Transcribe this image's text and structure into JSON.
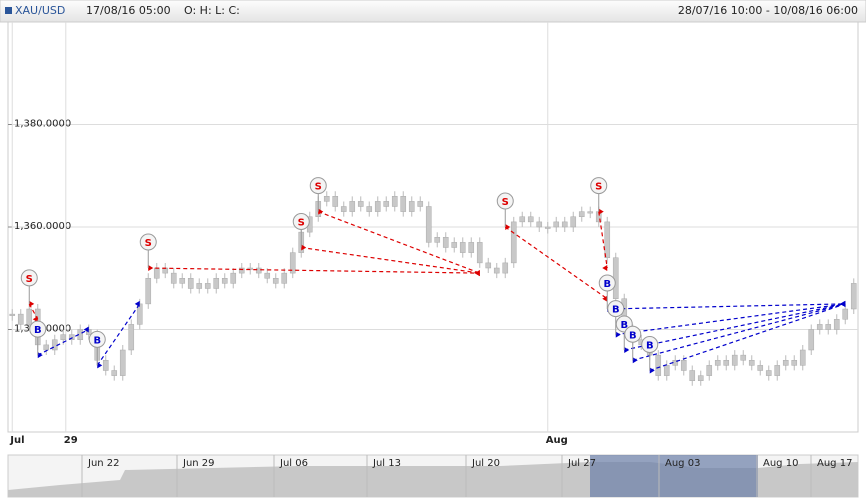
{
  "header": {
    "symbol": "XAU/USD",
    "time": "17/08/16 05:00",
    "ohlc": "O: H: L: C:",
    "range": "28/07/16 10:00 - 10/08/16 06:00"
  },
  "chart_data": {
    "type": "candlestick",
    "color": "#c8c8c8",
    "ylim": [
      1320,
      1400
    ],
    "yticks": [
      {
        "value": 1340,
        "label": "1,340.0000"
      },
      {
        "value": 1360,
        "label": "1,360.0000"
      },
      {
        "value": 1380,
        "label": "1,380.0000"
      }
    ],
    "xlim": [
      -0.5,
      99.5
    ],
    "xticks": [
      {
        "value": 0,
        "label": "Jul"
      },
      {
        "value": 6.3,
        "label": "29"
      },
      {
        "value": 63,
        "label": "Aug"
      }
    ],
    "grid": true,
    "values": [
      1343,
      1341,
      1344,
      1337,
      1336,
      1338,
      1339,
      1338,
      1340,
      1339,
      1334,
      1332,
      1331,
      1336,
      1341,
      1345,
      1350,
      1352,
      1351,
      1349,
      1350,
      1348,
      1349,
      1348,
      1350,
      1349,
      1351,
      1352,
      1352,
      1351,
      1350,
      1349,
      1351,
      1355,
      1359,
      1362,
      1365,
      1366,
      1364,
      1363,
      1365,
      1364,
      1363,
      1365,
      1364,
      1366,
      1363,
      1365,
      1364,
      1357,
      1358,
      1356,
      1357,
      1355,
      1357,
      1353,
      1352,
      1351,
      1353,
      1361,
      1362,
      1361,
      1360,
      1360,
      1361,
      1360,
      1362,
      1363,
      1363,
      1361,
      1354,
      1346,
      1340,
      1338,
      1337,
      1335,
      1331,
      1333,
      1334,
      1332,
      1330,
      1331,
      1333,
      1334,
      1333,
      1335,
      1334,
      1333,
      1332,
      1331,
      1333,
      1334,
      1333,
      1336,
      1340,
      1341,
      1340,
      1342,
      1344,
      1349
    ],
    "trades": [
      {
        "side": "S",
        "color": "#dd0000",
        "x": [
          2,
          3
        ],
        "values": [
          1345,
          1342
        ]
      },
      {
        "side": "B",
        "color": "#0000cc",
        "x": [
          3,
          9
        ],
        "values": [
          1335,
          1340
        ]
      },
      {
        "side": "B",
        "color": "#0000cc",
        "x": [
          10,
          15
        ],
        "values": [
          1333,
          1345
        ]
      },
      {
        "side": "S",
        "color": "#dd0000",
        "x": [
          16,
          55
        ],
        "values": [
          1352,
          1351
        ]
      },
      {
        "side": "S",
        "color": "#dd0000",
        "x": [
          34,
          55
        ],
        "values": [
          1356,
          1351
        ]
      },
      {
        "side": "S",
        "color": "#dd0000",
        "x": [
          36,
          55
        ],
        "values": [
          1363,
          1351
        ]
      },
      {
        "side": "S",
        "color": "#dd0000",
        "x": [
          58,
          70
        ],
        "values": [
          1360,
          1346
        ]
      },
      {
        "side": "S",
        "color": "#dd0000",
        "x": [
          69,
          70
        ],
        "values": [
          1363,
          1352
        ]
      },
      {
        "side": "B",
        "color": "#0000cc",
        "x": [
          70,
          98
        ],
        "values": [
          1344,
          1345
        ]
      },
      {
        "side": "B",
        "color": "#0000cc",
        "x": [
          71,
          98
        ],
        "values": [
          1339,
          1345
        ]
      },
      {
        "side": "B",
        "color": "#0000cc",
        "x": [
          72,
          98
        ],
        "values": [
          1336,
          1345
        ]
      },
      {
        "side": "B",
        "color": "#0000cc",
        "x": [
          73,
          98
        ],
        "values": [
          1334,
          1345
        ]
      },
      {
        "side": "B",
        "color": "#0000cc",
        "x": [
          75,
          98
        ],
        "values": [
          1332,
          1345
        ]
      }
    ]
  },
  "navigator": {
    "labels": [
      "Jun 22",
      "Jun 29",
      "Jul 06",
      "Jul 13",
      "Jul 20",
      "Jul 27",
      "Aug 03",
      "Aug 10",
      "Aug 17"
    ]
  }
}
